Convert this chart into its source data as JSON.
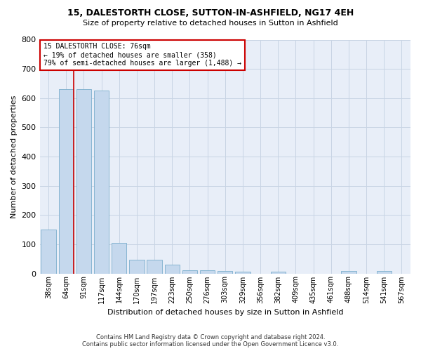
{
  "title1": "15, DALESTORTH CLOSE, SUTTON-IN-ASHFIELD, NG17 4EH",
  "title2": "Size of property relative to detached houses in Sutton in Ashfield",
  "xlabel": "Distribution of detached houses by size in Sutton in Ashfield",
  "ylabel": "Number of detached properties",
  "footer": "Contains HM Land Registry data © Crown copyright and database right 2024.\nContains public sector information licensed under the Open Government Licence v3.0.",
  "annotation_line1": "15 DALESTORTH CLOSE: 76sqm",
  "annotation_line2": "← 19% of detached houses are smaller (358)",
  "annotation_line3": "79% of semi-detached houses are larger (1,488) →",
  "bar_color": "#c5d8ed",
  "bar_edge_color": "#7aaecc",
  "marker_line_color": "#cc0000",
  "annotation_box_edge": "#cc0000",
  "background_color": "#ffffff",
  "axes_bg_color": "#e8eef8",
  "grid_color": "#c8d4e4",
  "categories": [
    "38sqm",
    "64sqm",
    "91sqm",
    "117sqm",
    "144sqm",
    "170sqm",
    "197sqm",
    "223sqm",
    "250sqm",
    "276sqm",
    "303sqm",
    "329sqm",
    "356sqm",
    "382sqm",
    "409sqm",
    "435sqm",
    "461sqm",
    "488sqm",
    "514sqm",
    "541sqm",
    "567sqm"
  ],
  "values": [
    150,
    630,
    630,
    625,
    105,
    47,
    47,
    30,
    10,
    11,
    9,
    7,
    0,
    7,
    0,
    0,
    0,
    8,
    0,
    9,
    0
  ],
  "marker_bar_index": 1,
  "ylim": [
    0,
    800
  ],
  "yticks": [
    0,
    100,
    200,
    300,
    400,
    500,
    600,
    700,
    800
  ]
}
